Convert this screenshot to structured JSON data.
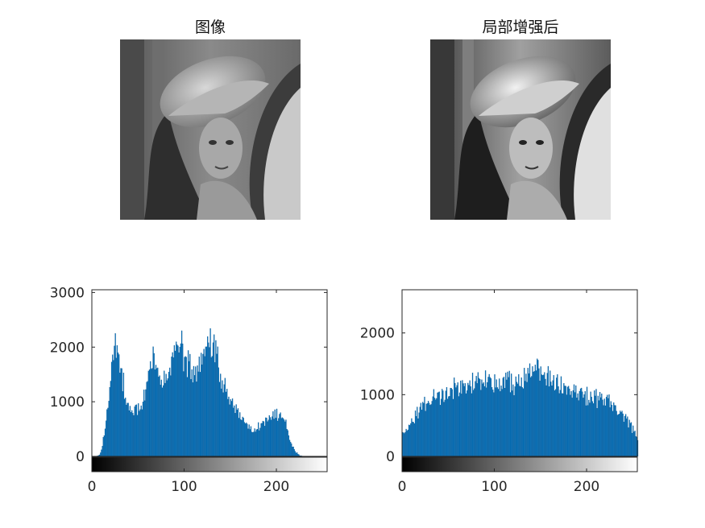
{
  "figure": {
    "panels": [
      {
        "title": "图像"
      },
      {
        "title": "局部增强后"
      }
    ]
  },
  "colors": {
    "bar": "#0072BD",
    "axis": "#262626",
    "background": "#ffffff"
  },
  "chart_data": [
    {
      "type": "bar",
      "title": "",
      "xlabel": "",
      "ylabel": "",
      "xlim": [
        0,
        255
      ],
      "ylim": [
        0,
        3050
      ],
      "xticks": [
        0,
        100,
        200
      ],
      "yticks": [
        0,
        1000,
        2000,
        3000
      ],
      "colorbar": "grayscale 0-255",
      "x_bin_width": 1,
      "profile": {
        "x": [
          0,
          5,
          8,
          10,
          12,
          15,
          18,
          20,
          22,
          25,
          28,
          30,
          32,
          35,
          38,
          40,
          45,
          50,
          55,
          60,
          65,
          70,
          75,
          80,
          85,
          90,
          95,
          100,
          105,
          110,
          115,
          120,
          125,
          130,
          135,
          140,
          145,
          150,
          155,
          160,
          165,
          170,
          175,
          180,
          185,
          190,
          195,
          200,
          205,
          210,
          215,
          220,
          225,
          230,
          255
        ],
        "y": [
          0,
          0,
          30,
          120,
          350,
          700,
          1100,
          1550,
          1850,
          2000,
          1900,
          1750,
          1550,
          1300,
          1050,
          920,
          900,
          870,
          1000,
          1550,
          1850,
          1720,
          1420,
          1450,
          1680,
          2000,
          2120,
          1780,
          1720,
          1650,
          1700,
          1850,
          2100,
          2100,
          1850,
          1400,
          1230,
          1020,
          880,
          800,
          650,
          520,
          440,
          560,
          640,
          700,
          730,
          790,
          820,
          600,
          280,
          90,
          15,
          0,
          0
        ]
      },
      "peaks": [
        {
          "x": 25,
          "y": 2250
        },
        {
          "x": 97,
          "y": 2300
        },
        {
          "x": 132,
          "y": 2230
        }
      ]
    },
    {
      "type": "bar",
      "title": "",
      "xlabel": "",
      "ylabel": "",
      "xlim": [
        0,
        255
      ],
      "ylim": [
        0,
        2700
      ],
      "xticks": [
        0,
        100,
        200
      ],
      "yticks": [
        0,
        1000,
        2000
      ],
      "colorbar": "grayscale 0-255",
      "x_bin_width": 1,
      "profile": {
        "x": [
          0,
          10,
          20,
          30,
          40,
          50,
          60,
          70,
          80,
          90,
          100,
          110,
          120,
          130,
          140,
          145,
          150,
          160,
          170,
          180,
          190,
          200,
          210,
          220,
          230,
          240,
          250,
          255
        ],
        "y": [
          350,
          600,
          800,
          930,
          1020,
          1080,
          1150,
          1210,
          1230,
          1220,
          1210,
          1210,
          1230,
          1290,
          1380,
          1400,
          1360,
          1270,
          1180,
          1100,
          1060,
          1020,
          980,
          930,
          830,
          650,
          450,
          250
        ]
      },
      "peaks": [
        {
          "x": 147,
          "y": 1560
        }
      ]
    }
  ]
}
